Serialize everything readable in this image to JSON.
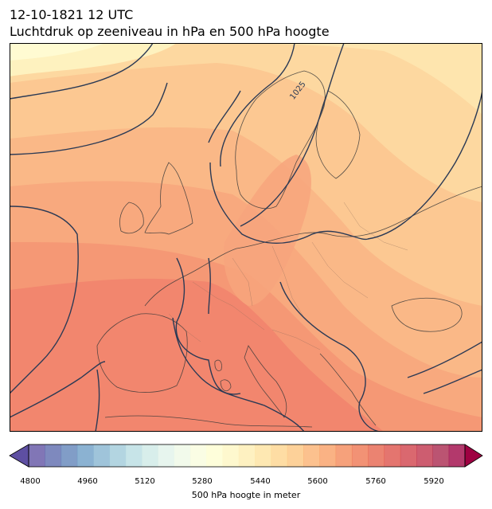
{
  "header": {
    "datetime": "12-10-1821 12 UTC",
    "title": "Luchtdruk op zeeniveau in hPa en 500 hPa hoogte"
  },
  "map": {
    "region": "Europe",
    "fill_variable": "500 hPa geopotential height (m)",
    "contour_variable": "sea level pressure (hPa)",
    "isobar_labels": [
      "1025"
    ],
    "line_color": "#2b3a55",
    "coast_color": "#3a3a3a"
  },
  "colorbar": {
    "label": "500 hPa hoogte in meter",
    "ticks": [
      "4800",
      "4960",
      "5120",
      "5280",
      "5440",
      "5600",
      "5760",
      "5920"
    ],
    "min": 4800,
    "max": 5960,
    "step": 40,
    "extend": "both",
    "colors": [
      "#5e4fa2",
      "#5a68ac",
      "#5d82b7",
      "#6a9cc5",
      "#84b4d0",
      "#9dc9d9",
      "#b7dde1",
      "#cde9e6",
      "#e0f2e9",
      "#eef8e6",
      "#f8fcdc",
      "#fefecf",
      "#fef6c0",
      "#feedaf",
      "#fee29c",
      "#fed48b",
      "#fdc47c",
      "#fbb06e",
      "#f89c61",
      "#f48756",
      "#ee734e",
      "#e66049",
      "#dc4e47",
      "#cf3e47",
      "#bf3048",
      "#a8244a",
      "#9e0142"
    ]
  }
}
